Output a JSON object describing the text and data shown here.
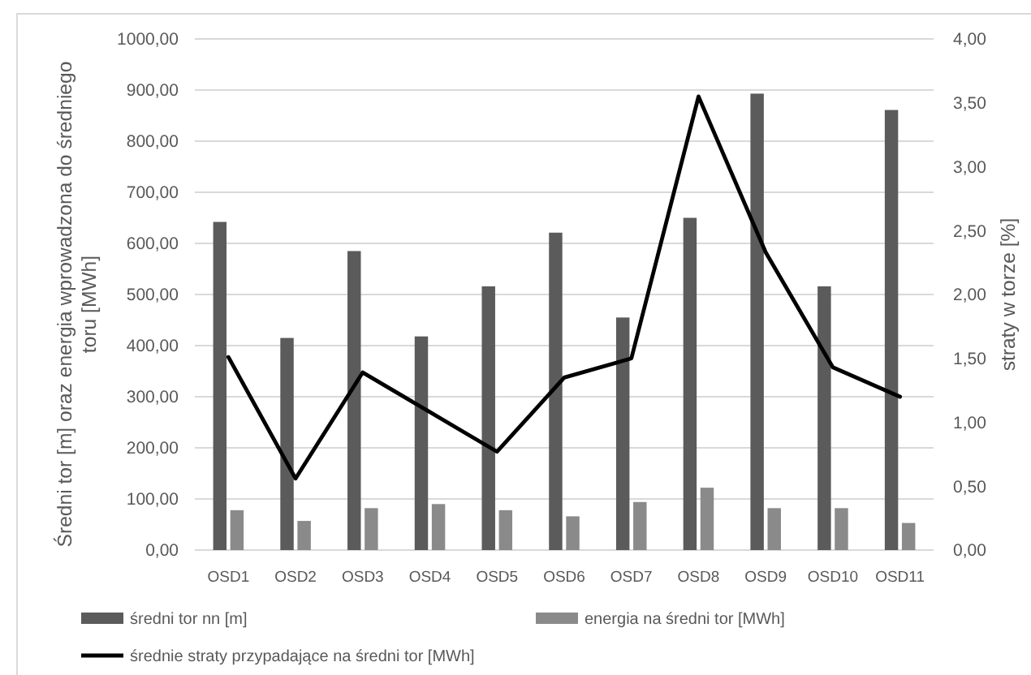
{
  "chart_data": {
    "type": "bar",
    "categories": [
      "OSD1",
      "OSD2",
      "OSD3",
      "OSD4",
      "OSD5",
      "OSD6",
      "OSD7",
      "OSD8",
      "OSD9",
      "OSD10",
      "OSD11"
    ],
    "series": [
      {
        "name": "średni tor nn [m]",
        "color": "#5b5b5b",
        "values": [
          642,
          415,
          585,
          418,
          516,
          621,
          455,
          650,
          893,
          516,
          861
        ]
      },
      {
        "name": "energia na średni tor [MWh]",
        "color": "#8a8a8a",
        "values": [
          78,
          57,
          82,
          90,
          78,
          66,
          94,
          122,
          82,
          82,
          53
        ]
      },
      {
        "name": "średnie straty przypadające na średni tor [MWh]",
        "color": "#000000",
        "type": "line",
        "axis": "y2",
        "values": [
          1.51,
          0.56,
          1.39,
          1.08,
          0.77,
          1.35,
          1.5,
          3.55,
          2.33,
          1.43,
          1.2
        ]
      }
    ],
    "ylabel": "Średni tor [m] oraz energia wprowadzona do średniego\ntoru [MWh]",
    "y2label": "straty w torze [%]",
    "ylim": [
      0,
      1000
    ],
    "yticks": [
      {
        "value": 0,
        "label": "0,00"
      },
      {
        "value": 100,
        "label": "100,00"
      },
      {
        "value": 200,
        "label": "200,00"
      },
      {
        "value": 300,
        "label": "300,00"
      },
      {
        "value": 400,
        "label": "400,00"
      },
      {
        "value": 500,
        "label": "500,00"
      },
      {
        "value": 600,
        "label": "600,00"
      },
      {
        "value": 700,
        "label": "700,00"
      },
      {
        "value": 800,
        "label": "800,00"
      },
      {
        "value": 900,
        "label": "900,00"
      },
      {
        "value": 1000,
        "label": "1000,00"
      }
    ],
    "y2lim": [
      0,
      4
    ],
    "y2ticks": [
      {
        "value": 0,
        "label": "0,00"
      },
      {
        "value": 0.5,
        "label": "0,50"
      },
      {
        "value": 1,
        "label": "1,00"
      },
      {
        "value": 1.5,
        "label": "1,50"
      },
      {
        "value": 2,
        "label": "2,00"
      },
      {
        "value": 2.5,
        "label": "2,50"
      },
      {
        "value": 3,
        "label": "3,00"
      },
      {
        "value": 3.5,
        "label": "3,50"
      },
      {
        "value": 4,
        "label": "4,00"
      }
    ],
    "grid": "y",
    "legend": "bottom",
    "marker": "none",
    "line_style": "solid"
  }
}
